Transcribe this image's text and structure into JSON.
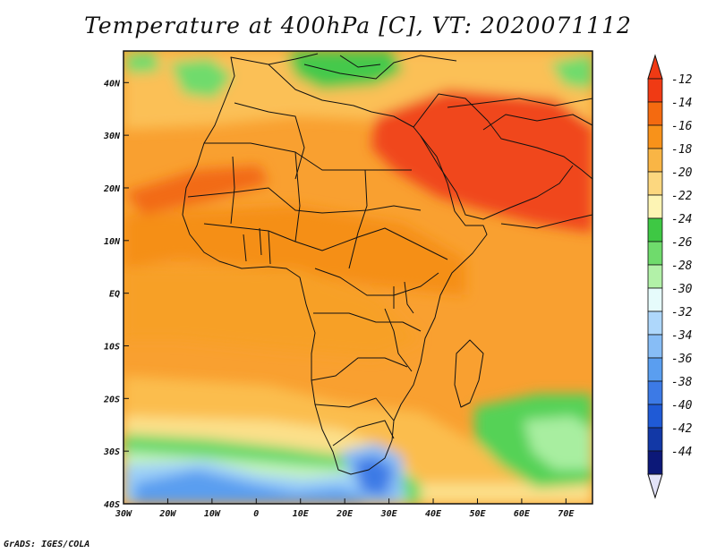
{
  "title": "Temperature at 400hPa [C], VT: 2020071112",
  "credit": "GrADS: IGES/COLA",
  "map": {
    "lon_range": [
      -30,
      76
    ],
    "lat_range": [
      -40,
      46
    ],
    "lon_ticks": [
      {
        "value": -30,
        "label": "30W"
      },
      {
        "value": -20,
        "label": "20W"
      },
      {
        "value": -10,
        "label": "10W"
      },
      {
        "value": 0,
        "label": "0"
      },
      {
        "value": 10,
        "label": "10E"
      },
      {
        "value": 20,
        "label": "20E"
      },
      {
        "value": 30,
        "label": "30E"
      },
      {
        "value": 40,
        "label": "40E"
      },
      {
        "value": 50,
        "label": "50E"
      },
      {
        "value": 60,
        "label": "60E"
      },
      {
        "value": 70,
        "label": "70E"
      }
    ],
    "lat_ticks": [
      {
        "value": 40,
        "label": "40N"
      },
      {
        "value": 30,
        "label": "30N"
      },
      {
        "value": 20,
        "label": "20N"
      },
      {
        "value": 10,
        "label": "10N"
      },
      {
        "value": 0,
        "label": "EQ"
      },
      {
        "value": -10,
        "label": "10S"
      },
      {
        "value": -20,
        "label": "20S"
      },
      {
        "value": -30,
        "label": "30S"
      },
      {
        "value": -40,
        "label": "40S"
      }
    ]
  },
  "colorbar": {
    "labels": [
      "-12",
      "-14",
      "-16",
      "-18",
      "-20",
      "-22",
      "-24",
      "-26",
      "-28",
      "-30",
      "-32",
      "-34",
      "-36",
      "-38",
      "-40",
      "-42",
      "-44"
    ],
    "colors": [
      "#f03a14",
      "#f46a10",
      "#f8921a",
      "#f9b545",
      "#fcd77f",
      "#fdf4b4",
      "#3ec844",
      "#6fdb6c",
      "#b2f1a8",
      "#e6fbfb",
      "#aed7fb",
      "#87bdf6",
      "#5a9ef0",
      "#3c7ae6",
      "#1f5ad6",
      "#1238a6",
      "#0c1878"
    ],
    "over_color": "#f03a14",
    "under_color": "#e3e3f8"
  }
}
